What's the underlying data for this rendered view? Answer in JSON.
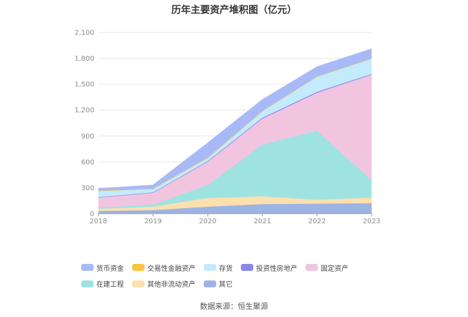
{
  "chart_data": {
    "type": "area",
    "stacked": true,
    "title": "历年主要资产堆积图（亿元）",
    "categories": [
      "2018",
      "2019",
      "2020",
      "2021",
      "2022",
      "2023"
    ],
    "y_ticks": [
      "0",
      "300",
      "600",
      "900",
      "1,200",
      "1,500",
      "1,800",
      "2,100"
    ],
    "ylim": [
      0,
      2100
    ],
    "grid": true,
    "legend_position": "bottom",
    "series": [
      {
        "name": "其它",
        "color": "#9db3e3",
        "values": [
          30,
          40,
          80,
          110,
          115,
          120
        ]
      },
      {
        "name": "其他非流动资产",
        "color": "#fde0ae",
        "values": [
          25,
          40,
          100,
          90,
          45,
          65
        ]
      },
      {
        "name": "在建工程",
        "color": "#9fe3e1",
        "values": [
          15,
          25,
          150,
          600,
          800,
          200
        ]
      },
      {
        "name": "固定资产",
        "color": "#f1c5e0",
        "values": [
          115,
          135,
          270,
          300,
          440,
          1225
        ]
      },
      {
        "name": "投资性房地产",
        "color": "#8b86ee",
        "values": [
          5,
          5,
          8,
          10,
          10,
          8
        ]
      },
      {
        "name": "存货",
        "color": "#c3ebfd",
        "values": [
          70,
          40,
          40,
          80,
          180,
          180
        ]
      },
      {
        "name": "交易性金融资产",
        "color": "#f9c43e",
        "values": [
          5,
          5,
          0,
          0,
          0,
          0
        ]
      },
      {
        "name": "货币资金",
        "color": "#a8b9f8",
        "values": [
          25,
          40,
          170,
          130,
          110,
          110
        ]
      }
    ],
    "legend_order": [
      "货币资金",
      "交易性金融资产",
      "存货",
      "投资性房地产",
      "固定资产",
      "在建工程",
      "其他非流动资产",
      "其它"
    ]
  },
  "source_text": "数据来源：恒生聚源"
}
